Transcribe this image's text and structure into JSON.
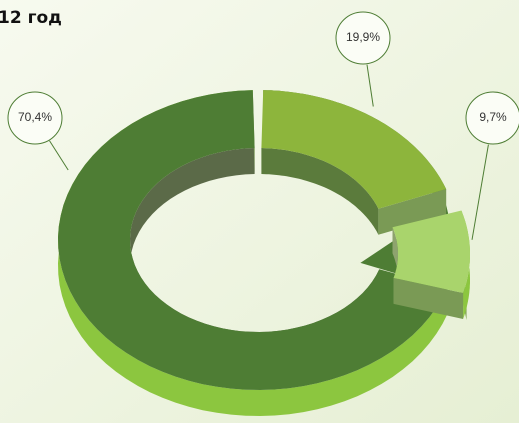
{
  "chart_data": {
    "type": "pie",
    "title": "12 год",
    "categories": [
      null,
      null,
      null
    ],
    "values": [
      70.4,
      19.9,
      9.7
    ],
    "value_labels": [
      "70,4%",
      "19,9%",
      "9,7%"
    ],
    "colors": [
      "#4e7d34",
      "#8db53c",
      "#a9d46c"
    ]
  }
}
